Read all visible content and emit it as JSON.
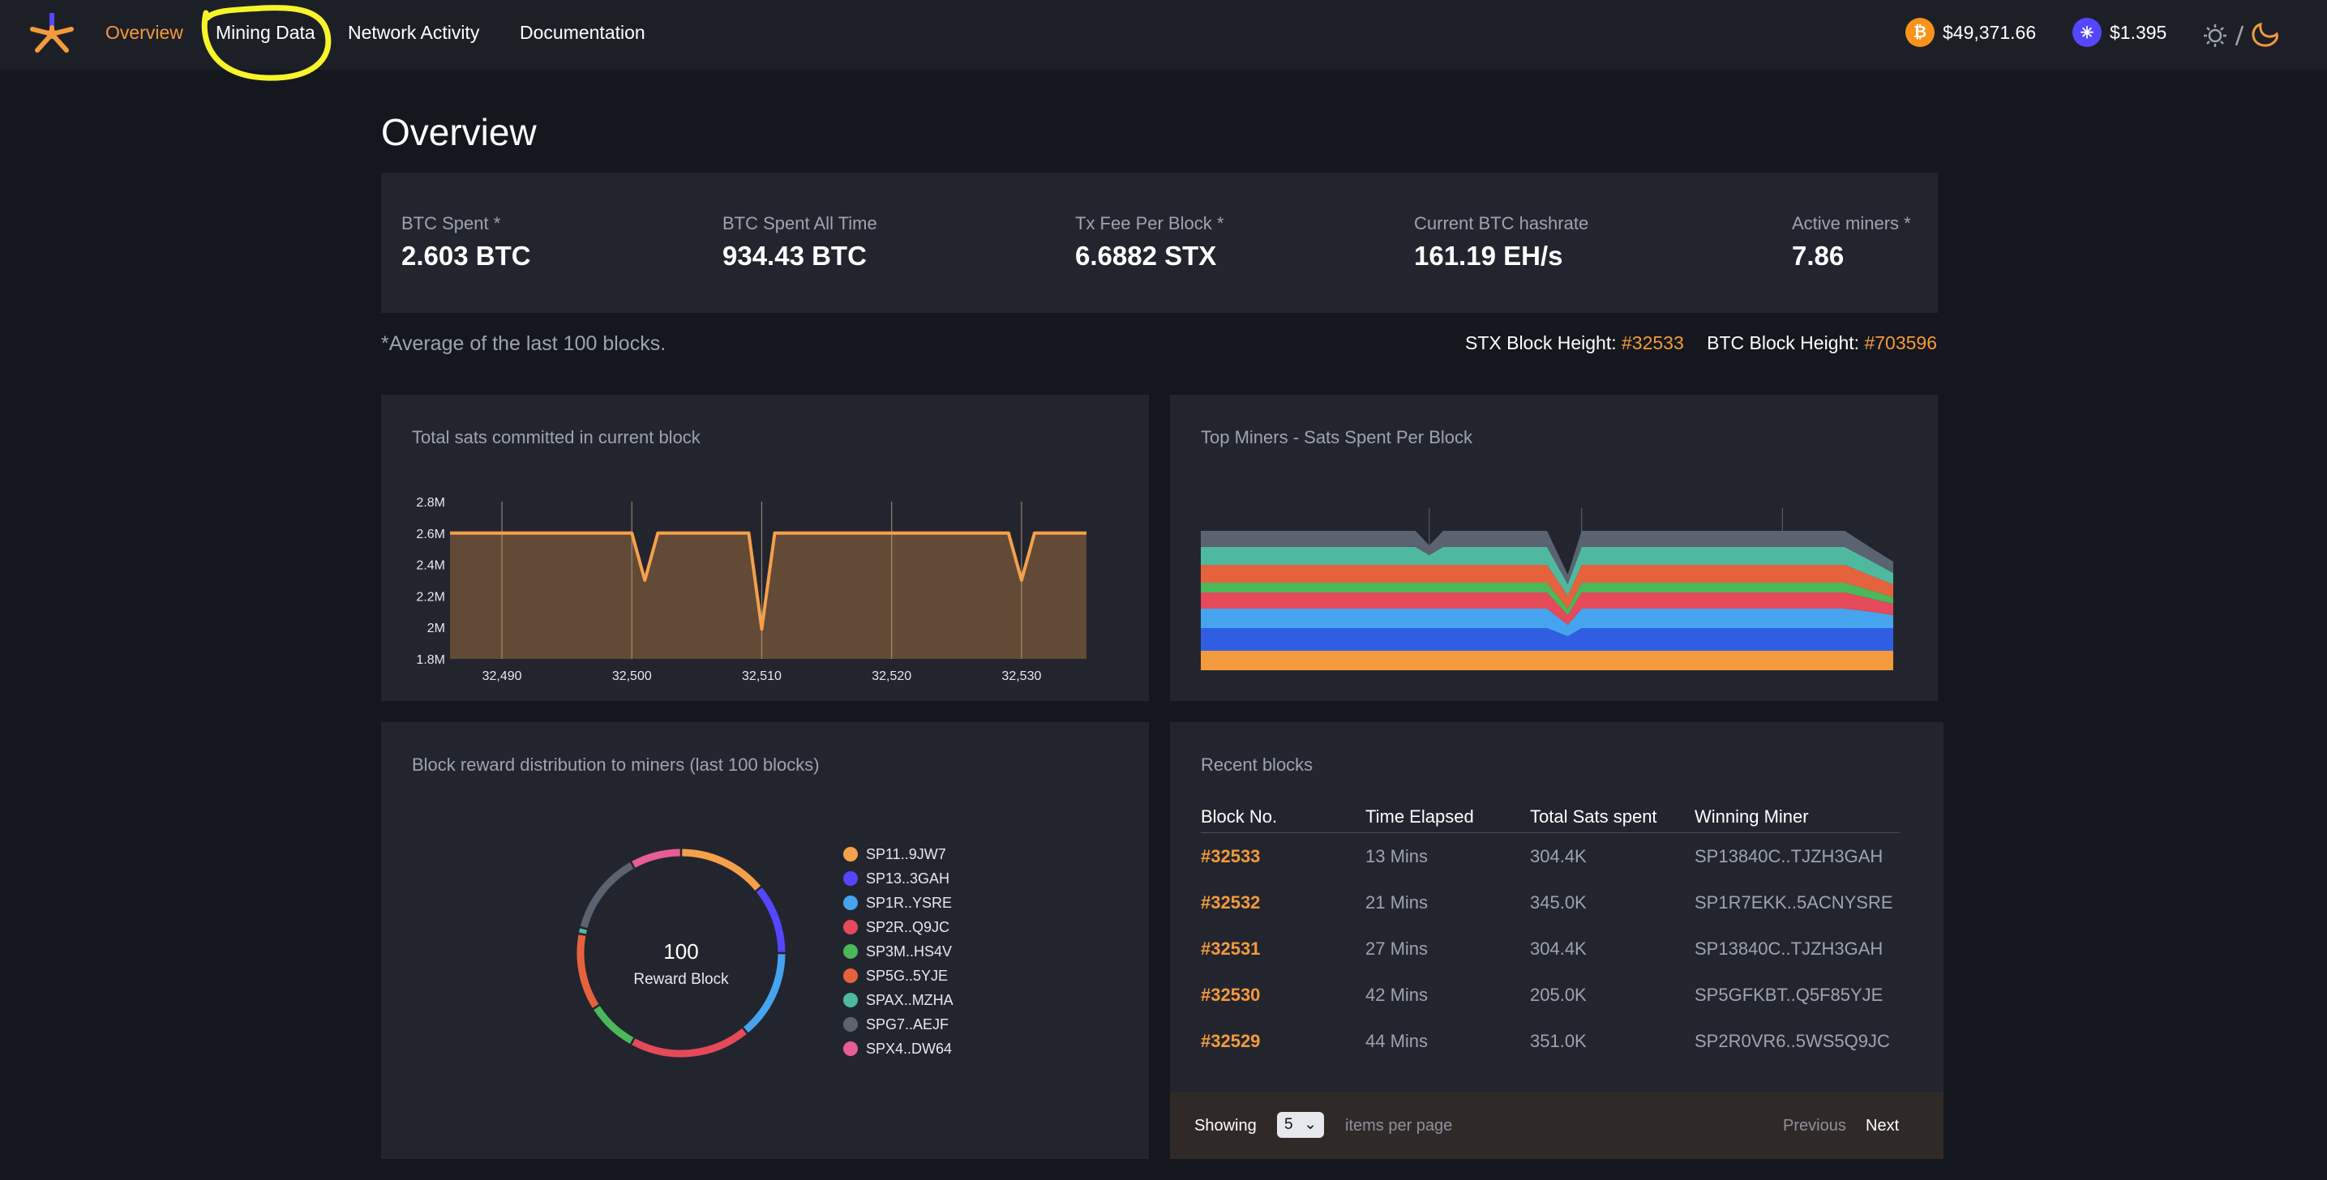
{
  "nav": {
    "links": [
      {
        "label": "Overview",
        "active": true
      },
      {
        "label": "Mining Data"
      },
      {
        "label": "Network Activity"
      },
      {
        "label": "Documentation"
      }
    ],
    "btc_price": "$49,371.66",
    "stx_price": "$1.395",
    "btc_icon": "bitcoin-icon",
    "stx_icon": "stacks-icon",
    "theme_icons": [
      "sun-icon",
      "moon-icon"
    ],
    "highlight_color": "#f7f52a"
  },
  "page_title": "Overview",
  "stats": [
    {
      "label": "BTC Spent *",
      "value": "2.603 BTC"
    },
    {
      "label": "BTC Spent All Time",
      "value": "934.43 BTC"
    },
    {
      "label": "Tx Fee Per Block *",
      "value": "6.6882 STX"
    },
    {
      "label": "Current BTC hashrate",
      "value": "161.19 EH/s"
    },
    {
      "label": "Active miners *",
      "value": "7.86"
    }
  ],
  "note": "*Average of the last 100 blocks.",
  "heights": {
    "stx_label": "STX Block Height:",
    "stx_value": "#32533",
    "btc_label": "BTC Block Height:",
    "btc_value": "#703596"
  },
  "colors": {
    "accent": "#f39a3c",
    "card": "#23252e",
    "background": "#15171e"
  },
  "chart_data": [
    {
      "type": "area",
      "title": "Total sats committed in current block",
      "xlabel": "",
      "ylabel": "",
      "xlim": [
        32486,
        32535
      ],
      "ylim": [
        1800000,
        2800000
      ],
      "x_ticks": [
        32490,
        32500,
        32510,
        32520,
        32530
      ],
      "x_tick_labels": [
        "32,490",
        "32,500",
        "32,510",
        "32,520",
        "32,530"
      ],
      "y_ticks": [
        1800000,
        2000000,
        2200000,
        2400000,
        2600000,
        2800000
      ],
      "y_tick_labels": [
        "1.8M",
        "2M",
        "2.2M",
        "2.4M",
        "2.6M",
        "2.8M"
      ],
      "x": [
        32486,
        32500,
        32501,
        32502,
        32509,
        32510,
        32511,
        32529,
        32530,
        32531,
        32535
      ],
      "y": [
        2600000,
        2600000,
        2300000,
        2600000,
        2600000,
        1990000,
        2600000,
        2600000,
        2300000,
        2600000,
        2600000
      ],
      "color": "#f5a04a",
      "fill": "#624a36"
    },
    {
      "type": "area",
      "title": "Top Miners - Sats Spent Per Block",
      "stacked": true,
      "x": [
        0,
        0.12,
        0.24,
        0.31,
        0.33,
        0.35,
        0.5,
        0.53,
        0.55,
        0.56,
        0.9,
        0.93,
        0.97,
        1.0
      ],
      "series": [
        {
          "color": "#f39a3c",
          "values": [
            12,
            12,
            12,
            12,
            12,
            12,
            12,
            12,
            12,
            12,
            12,
            12,
            12,
            12
          ]
        },
        {
          "color": "#2f5ee3",
          "values": [
            14,
            14,
            14,
            14,
            14,
            14,
            14,
            9,
            14,
            14,
            14,
            14,
            14,
            14
          ]
        },
        {
          "color": "#46a4ef",
          "values": [
            12,
            12,
            12,
            12,
            12,
            12,
            12,
            7,
            12,
            12,
            12,
            12,
            10,
            8
          ]
        },
        {
          "color": "#e44a5a",
          "values": [
            10,
            10,
            10,
            10,
            10,
            10,
            10,
            6,
            10,
            10,
            10,
            10,
            8,
            7
          ]
        },
        {
          "color": "#4bb85a",
          "values": [
            6,
            6,
            6,
            6,
            6,
            6,
            6,
            4,
            6,
            6,
            6,
            6,
            5,
            4
          ]
        },
        {
          "color": "#e6623d",
          "values": [
            11,
            11,
            11,
            11,
            11,
            11,
            11,
            8,
            11,
            11,
            11,
            11,
            9,
            8
          ]
        },
        {
          "color": "#4fb9a0",
          "values": [
            11,
            11,
            11,
            11,
            6,
            11,
            11,
            7,
            11,
            11,
            11,
            11,
            9,
            7
          ]
        },
        {
          "color": "#5b6370",
          "values": [
            10,
            10,
            10,
            10,
            6,
            10,
            10,
            6,
            10,
            10,
            10,
            10,
            8,
            7
          ]
        }
      ],
      "grid_x": [
        0.33,
        0.55,
        0.84
      ]
    }
  ],
  "donut": {
    "title": "Block reward distribution to miners (last 100 blocks)",
    "center_value": "100",
    "center_label": "Reward Block",
    "segments": [
      {
        "label": "SP11..9JW7",
        "color": "#f5a04a",
        "value": 14
      },
      {
        "label": "SP13..3GAH",
        "color": "#5546ff",
        "value": 11
      },
      {
        "label": "SP1R..YSRE",
        "color": "#46a4ef",
        "value": 14
      },
      {
        "label": "SP2R..Q9JC",
        "color": "#e44a5a",
        "value": 19
      },
      {
        "label": "SP3M..HS4V",
        "color": "#4bb85a",
        "value": 8
      },
      {
        "label": "SP5G..5YJE",
        "color": "#e6623d",
        "value": 12
      },
      {
        "label": "SPAX..MZHA",
        "color": "#4fb9a0",
        "value": 1
      },
      {
        "label": "SPG7..AEJF",
        "color": "#5b6370",
        "value": 13
      },
      {
        "label": "SPX4..DW64",
        "color": "#e75d94",
        "value": 8
      }
    ]
  },
  "recent": {
    "title": "Recent blocks",
    "headers": [
      "Block No.",
      "Time Elapsed",
      "Total Sats spent",
      "Winning Miner"
    ],
    "rows": [
      [
        "#32533",
        "13 Mins",
        "304.4K",
        "SP13840C..TJZH3GAH"
      ],
      [
        "#32532",
        "21 Mins",
        "345.0K",
        "SP1R7EKK..5ACNYSRE"
      ],
      [
        "#32531",
        "27 Mins",
        "304.4K",
        "SP13840C..TJZH3GAH"
      ],
      [
        "#32530",
        "42 Mins",
        "205.0K",
        "SP5GFKBT..Q5F85YJE"
      ],
      [
        "#32529",
        "44 Mins",
        "351.0K",
        "SP2R0VR6..5WS5Q9JC"
      ]
    ],
    "showing_label": "Showing",
    "per_page_value": "5",
    "items_per_page_label": "items per page",
    "previous_label": "Previous",
    "next_label": "Next"
  }
}
